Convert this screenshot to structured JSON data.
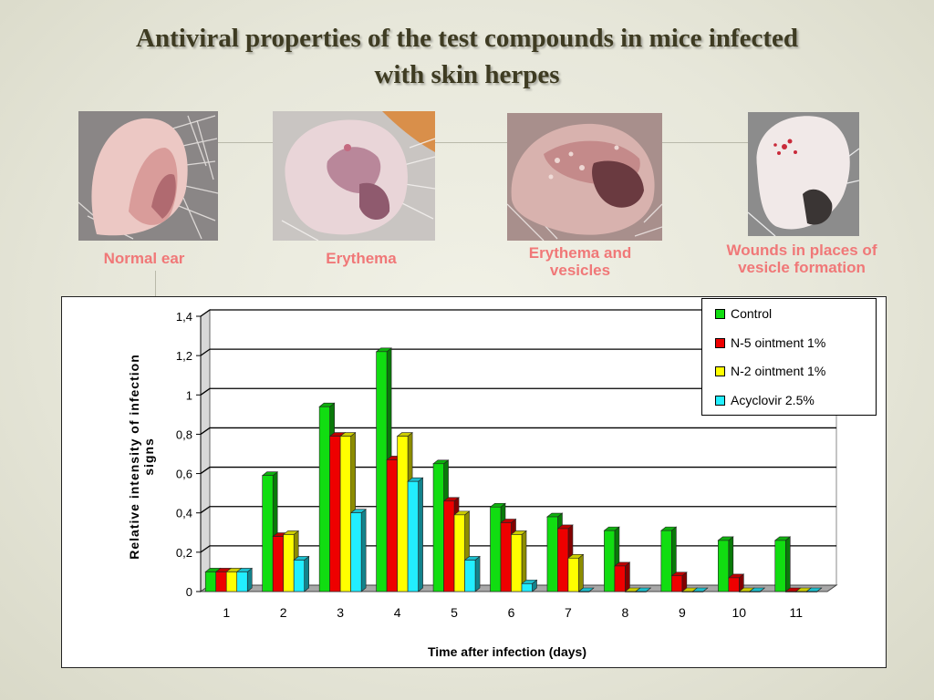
{
  "slide": {
    "title_line1": "Antiviral properties of  the test compounds in mice infected",
    "title_line2": "with skin herpes"
  },
  "photos": [
    {
      "caption": "Normal ear",
      "image": "normal-ear-photo"
    },
    {
      "caption": "Erythema",
      "image": "erythema-ear-photo"
    },
    {
      "caption_line1": "Erythema and",
      "caption_line2": "vesicles",
      "image": "erythema-vesicles-ear-photo"
    },
    {
      "caption_line1": "Wounds in places of",
      "caption_line2": "vesicle formation",
      "image": "wounds-ear-photo"
    }
  ],
  "chart_data": {
    "type": "bar",
    "title": "",
    "xlabel": "Time after infection (days)",
    "ylabel_line1": "Relative intensity of infection",
    "ylabel_line2": "signs",
    "categories": [
      "1",
      "2",
      "3",
      "4",
      "5",
      "6",
      "7",
      "8",
      "9",
      "10",
      "11"
    ],
    "ylim": [
      0,
      1.4
    ],
    "yticks": [
      "0",
      "0,2",
      "0,4",
      "0,6",
      "0,8",
      "1",
      "1,2",
      "1,4"
    ],
    "grid": true,
    "legend_position": "top-right",
    "series": [
      {
        "name": "Control",
        "color": "#11dd11",
        "values": [
          0.1,
          0.59,
          0.94,
          1.22,
          0.65,
          0.43,
          0.38,
          0.31,
          0.31,
          0.26,
          0.26
        ]
      },
      {
        "name": "N-5 ointment 1%",
        "color": "#ee0000",
        "values": [
          0.1,
          0.28,
          0.79,
          0.67,
          0.46,
          0.35,
          0.32,
          0.13,
          0.08,
          0.07,
          0.0
        ]
      },
      {
        "name": "N-2 ointment 1%",
        "color": "#ffff00",
        "values": [
          0.1,
          0.29,
          0.79,
          0.79,
          0.39,
          0.29,
          0.17,
          0.0,
          0.0,
          0.0,
          0.0
        ]
      },
      {
        "name": "Acyclovir 2.5%",
        "color": "#22eeff",
        "values": [
          0.1,
          0.16,
          0.4,
          0.56,
          0.16,
          0.04,
          0.0,
          0.0,
          0.0,
          0.0,
          0.0
        ]
      }
    ]
  }
}
